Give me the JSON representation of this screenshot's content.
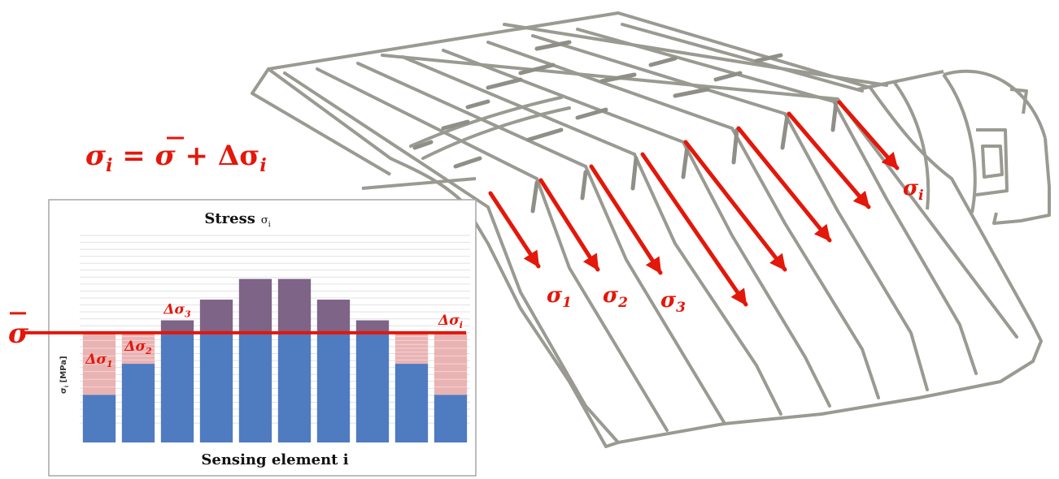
{
  "equation": {
    "lhs": "σ",
    "lhs_sub": "i",
    "eq": " = ",
    "mean": "σ",
    "plus": " + Δσ",
    "rhs_sub": "i"
  },
  "mean_label": "σ",
  "sheet_labels": [
    {
      "main": "σ",
      "sub": "1"
    },
    {
      "main": "σ",
      "sub": "2"
    },
    {
      "main": "σ",
      "sub": "3"
    },
    {
      "main": "σ",
      "sub": "i"
    }
  ],
  "chart_data": {
    "type": "bar",
    "title": "Stress",
    "title_symbol": "σ",
    "title_symbol_sub": "i",
    "xlabel": "Sensing element i",
    "ylabel": "σ",
    "ylabel_sub": "i",
    "ylabel_unit": " [MPa]",
    "mean": 53,
    "ylim": [
      0,
      100
    ],
    "values": [
      23,
      38,
      59,
      69,
      79,
      79,
      69,
      59,
      38,
      23
    ],
    "deviation_labels": [
      {
        "bar": 0,
        "main": "Δσ",
        "sub": "1"
      },
      {
        "bar": 1,
        "main": "Δσ",
        "sub": "2"
      },
      {
        "bar": 2,
        "main": "Δσ",
        "sub": "3"
      },
      {
        "bar": 9,
        "main": "Δσ",
        "sub": "i"
      }
    ],
    "colors": {
      "base": "#4f7bc1",
      "excess": "#7e6487",
      "deficit": "#eab3b3",
      "mean_line": "#e3170a"
    }
  }
}
